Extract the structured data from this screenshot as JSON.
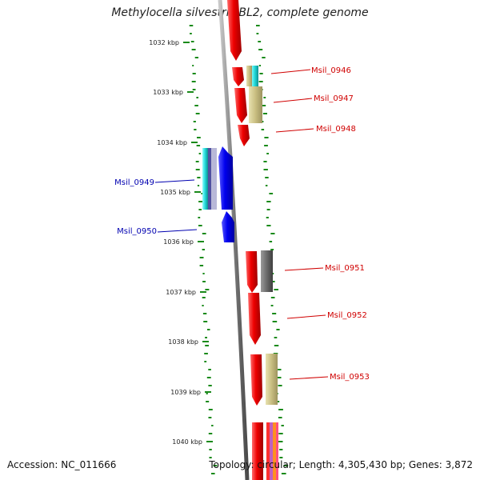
{
  "title": "Methylocella silvestris BL2, complete genome",
  "accession": "Accession: NC_011666",
  "summary": "Topology: circular; Length: 4,305,430 bp; Genes: 3,872",
  "colors": {
    "forward_label": "#d00000",
    "reverse_label": "#0000b0",
    "forward_gene": "#ee0000",
    "reverse_gene": "#0000ee",
    "gc_skew": "#1a8a1a",
    "backbone": "#8a8a8a"
  },
  "ruler": {
    "unit": "kbp",
    "ticks": [
      "1032 kbp",
      "1033 kbp",
      "1034 kbp",
      "1035 kbp",
      "1036 kbp",
      "1037 kbp",
      "1038 kbp",
      "1039 kbp",
      "1040 kbp"
    ]
  },
  "labels": [
    {
      "id": "Msil_0946",
      "text": "Msil_0946",
      "strand": "forward"
    },
    {
      "id": "Msil_0947",
      "text": "Msil_0947",
      "strand": "forward"
    },
    {
      "id": "Msil_0948",
      "text": "Msil_0948",
      "strand": "forward"
    },
    {
      "id": "Msil_0949",
      "text": "Msil_0949",
      "strand": "reverse"
    },
    {
      "id": "Msil_0950",
      "text": "Msil_0950",
      "strand": "reverse"
    },
    {
      "id": "Msil_0951",
      "text": "Msil_0951",
      "strand": "forward"
    },
    {
      "id": "Msil_0952",
      "text": "Msil_0952",
      "strand": "forward"
    },
    {
      "id": "Msil_0953",
      "text": "Msil_0953",
      "strand": "forward"
    }
  ]
}
